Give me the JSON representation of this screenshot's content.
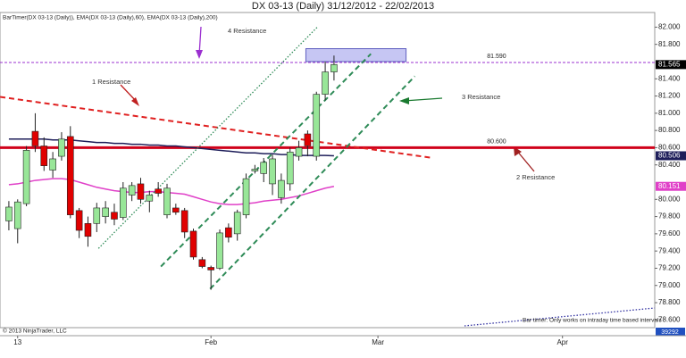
{
  "chart_data": {
    "type": "candlestick",
    "title": "DX 03-13 (Daily)  31/12/2012 - 22/02/2013",
    "legend_text": "BarTimer(DX 03-13 (Daily)), EMA(DX 03-13 (Daily),60), EMA(DX 03-13 (Daily),200)",
    "categories": [
      null,
      "13",
      null,
      null,
      null,
      null,
      null,
      null,
      null,
      null,
      null,
      null,
      null,
      null,
      null,
      null,
      null,
      null,
      null,
      null,
      null,
      null,
      null,
      "Feb",
      null,
      null,
      null,
      null,
      null,
      null,
      null,
      null,
      null,
      null,
      null,
      null,
      null,
      null,
      null,
      null,
      null,
      null,
      "Mar",
      null,
      null,
      null,
      null,
      null,
      null,
      null,
      null,
      null,
      null,
      null,
      null,
      null,
      null,
      null,
      null,
      null,
      null,
      null,
      null,
      "Apr",
      null,
      null,
      null,
      null,
      null,
      null,
      null,
      null,
      null,
      null
    ],
    "open": [
      79.75,
      79.66,
      79.95,
      80.79,
      80.62,
      80.34,
      80.5,
      80.73,
      79.87,
      79.72,
      79.72,
      79.8,
      79.85,
      79.79,
      80.05,
      80.18,
      79.98,
      80.12,
      79.82,
      79.9,
      79.87,
      79.63,
      79.3,
      79.21,
      79.2,
      79.67,
      79.6,
      79.82,
      80.33,
      80.3,
      80.18,
      80.02,
      80.18,
      80.5,
      80.76,
      80.5,
      81.22,
      81.48,
      null,
      null,
      null,
      null,
      null,
      null,
      null,
      null,
      null,
      null,
      null,
      null,
      null,
      null,
      null,
      null,
      null,
      null,
      null,
      null,
      null,
      null,
      null,
      null,
      null,
      null,
      null,
      null,
      null,
      null,
      null,
      null,
      null,
      null,
      null,
      null
    ],
    "high": [
      79.98,
      80.0,
      80.62,
      81.0,
      80.72,
      80.55,
      80.78,
      80.85,
      79.9,
      79.8,
      79.96,
      79.98,
      79.95,
      80.2,
      80.2,
      80.25,
      80.1,
      80.2,
      80.18,
      79.95,
      79.9,
      79.66,
      79.33,
      79.23,
      79.65,
      79.72,
      79.88,
      80.3,
      80.4,
      80.48,
      80.52,
      80.3,
      80.6,
      80.68,
      80.8,
      81.25,
      81.6,
      81.67,
      null,
      null,
      null,
      null,
      null,
      null,
      null,
      null,
      null,
      null,
      null,
      null,
      null,
      null,
      null,
      null,
      null,
      null,
      null,
      null,
      null,
      null,
      null,
      null,
      null,
      null,
      null,
      null,
      null,
      null,
      null,
      null,
      null,
      null,
      null,
      null
    ],
    "low": [
      79.64,
      79.49,
      79.92,
      80.55,
      80.33,
      80.25,
      80.45,
      79.78,
      79.55,
      79.45,
      79.62,
      79.72,
      79.7,
      79.76,
      79.98,
      79.95,
      79.85,
      80.03,
      79.78,
      79.82,
      79.55,
      79.3,
      79.2,
      78.95,
      79.18,
      79.5,
      79.52,
      79.78,
      80.3,
      80.2,
      80.05,
      79.95,
      80.1,
      80.45,
      80.5,
      80.45,
      81.15,
      81.38,
      null,
      null,
      null,
      null,
      null,
      null,
      null,
      null,
      null,
      null,
      null,
      null,
      null,
      null,
      null,
      null,
      null,
      null,
      null,
      null,
      null,
      null,
      null,
      null,
      null,
      null,
      null,
      null,
      null,
      null,
      null,
      null,
      null,
      null,
      null,
      null
    ],
    "close": [
      79.91,
      79.97,
      80.57,
      80.62,
      80.39,
      80.47,
      80.7,
      79.82,
      79.64,
      79.57,
      79.9,
      79.9,
      79.77,
      80.13,
      80.16,
      80.0,
      80.05,
      80.07,
      80.13,
      79.85,
      79.62,
      79.33,
      79.22,
      79.18,
      79.61,
      79.56,
      79.85,
      80.24,
      80.35,
      80.43,
      80.47,
      80.22,
      80.55,
      80.6,
      80.62,
      81.22,
      81.48,
      81.565,
      null,
      null,
      null,
      null,
      null,
      null,
      null,
      null,
      null,
      null,
      null,
      null,
      null,
      null,
      null,
      null,
      null,
      null,
      null,
      null,
      null,
      null,
      null,
      null,
      null,
      null,
      null,
      null,
      null,
      null,
      null,
      null,
      null,
      null,
      null,
      null
    ],
    "up_color": "#98e698",
    "down_color": "#e00000",
    "series": [
      {
        "color": "#e040c8",
        "values": [
          80.17,
          80.18,
          80.2,
          80.22,
          80.23,
          80.24,
          80.24,
          80.23,
          80.2,
          80.17,
          80.14,
          80.12,
          80.1,
          80.09,
          80.08,
          80.08,
          80.09,
          80.09,
          80.08,
          80.07,
          80.06,
          80.03,
          80.0,
          79.97,
          79.95,
          79.94,
          79.94,
          79.95,
          79.96,
          79.98,
          79.99,
          80.0,
          80.02,
          80.04,
          80.07,
          80.1,
          80.13,
          80.151,
          null,
          null,
          null,
          null,
          null,
          null,
          null,
          null,
          null,
          null,
          null,
          null,
          null,
          null,
          null,
          null,
          null,
          null,
          null,
          null,
          null,
          null,
          null,
          null,
          null,
          null,
          null,
          null,
          null,
          null,
          null,
          null,
          null,
          null,
          null,
          null
        ]
      },
      {
        "color": "#1e1e5a",
        "values": [
          80.7,
          80.7,
          80.7,
          80.7,
          80.7,
          80.69,
          80.69,
          80.69,
          80.68,
          80.67,
          80.66,
          80.66,
          80.65,
          80.65,
          80.64,
          80.64,
          80.63,
          80.63,
          80.62,
          80.62,
          80.61,
          80.6,
          80.59,
          80.58,
          80.57,
          80.56,
          80.55,
          80.54,
          80.54,
          80.53,
          80.53,
          80.52,
          80.52,
          80.51,
          80.51,
          80.51,
          80.51,
          80.506,
          null,
          null,
          null,
          null,
          null,
          null,
          null,
          null,
          null,
          null,
          null,
          null,
          null,
          null,
          null,
          null,
          null,
          null,
          null,
          null,
          null,
          null,
          null,
          null,
          null,
          null,
          null,
          null,
          null,
          null,
          null,
          null,
          null,
          null,
          null,
          null
        ]
      }
    ],
    "ylim": [
      78.51,
      82.17
    ],
    "yticks": [
      {
        "value": 78.6,
        "label": "78.600"
      },
      {
        "value": 78.8,
        "label": "78.800"
      },
      {
        "value": 79.0,
        "label": "79.000"
      },
      {
        "value": 79.2,
        "label": "79.200"
      },
      {
        "value": 79.4,
        "label": "79.400"
      },
      {
        "value": 79.6,
        "label": "79.600"
      },
      {
        "value": 79.8,
        "label": "79.800"
      },
      {
        "value": 80.0,
        "label": "80.000"
      },
      {
        "value": 80.4,
        "label": "80.400"
      },
      {
        "value": 80.6,
        "label": "80.600"
      },
      {
        "value": 80.8,
        "label": "80.800"
      },
      {
        "value": 81.0,
        "label": "81.000"
      },
      {
        "value": 81.2,
        "label": "81.200"
      },
      {
        "value": 81.4,
        "label": "81.400"
      },
      {
        "value": 81.8,
        "label": "81.800"
      },
      {
        "value": 82.0,
        "label": "82.000"
      }
    ],
    "price_markers": [
      {
        "value": 81.565,
        "label": "81.565",
        "color": "#000000"
      },
      {
        "value": 80.506,
        "label": "80.506",
        "color": "#1e1e5a"
      },
      {
        "value": 80.151,
        "label": "80.151",
        "color": "#e040c8"
      }
    ],
    "hlines": [
      {
        "value": 81.59,
        "label": "81.590",
        "color": "#9b30d0",
        "dashed": true
      },
      {
        "value": 80.6,
        "label": "80.600",
        "color": "#d0021b",
        "dashed": false
      }
    ],
    "trendlines": [
      {
        "color": "#e02020",
        "dashed": true,
        "from": [
          -1.0,
          81.19
        ],
        "to": [
          48.3,
          80.48
        ]
      },
      {
        "color": "#2e8b57",
        "dashed": true,
        "from": [
          17.3,
          79.22
        ],
        "to": [
          41.2,
          81.69
        ]
      },
      {
        "color": "#2e8b57",
        "dashed": true,
        "from": [
          22.9,
          78.96
        ],
        "to": [
          46.2,
          81.43
        ]
      },
      {
        "color": "#2e8b57",
        "dashed": false,
        "from": [
          10.2,
          79.43
        ],
        "to": [
          35.1,
          82.0
        ]
      }
    ],
    "zone": {
      "color": "#b8b8f0",
      "from": [
        33.8,
        81.75
      ],
      "to": [
        45.2,
        81.6
      ]
    },
    "annotations": [
      "4 Resistance",
      "1 Resistance",
      "3 Resistance",
      "2 Resistance"
    ],
    "copyright": "© 2013 NinjaTrader, LLC",
    "bar_timer_note": "Bar timer: Only works on intraday time based intervals",
    "corner_label": "39292"
  }
}
